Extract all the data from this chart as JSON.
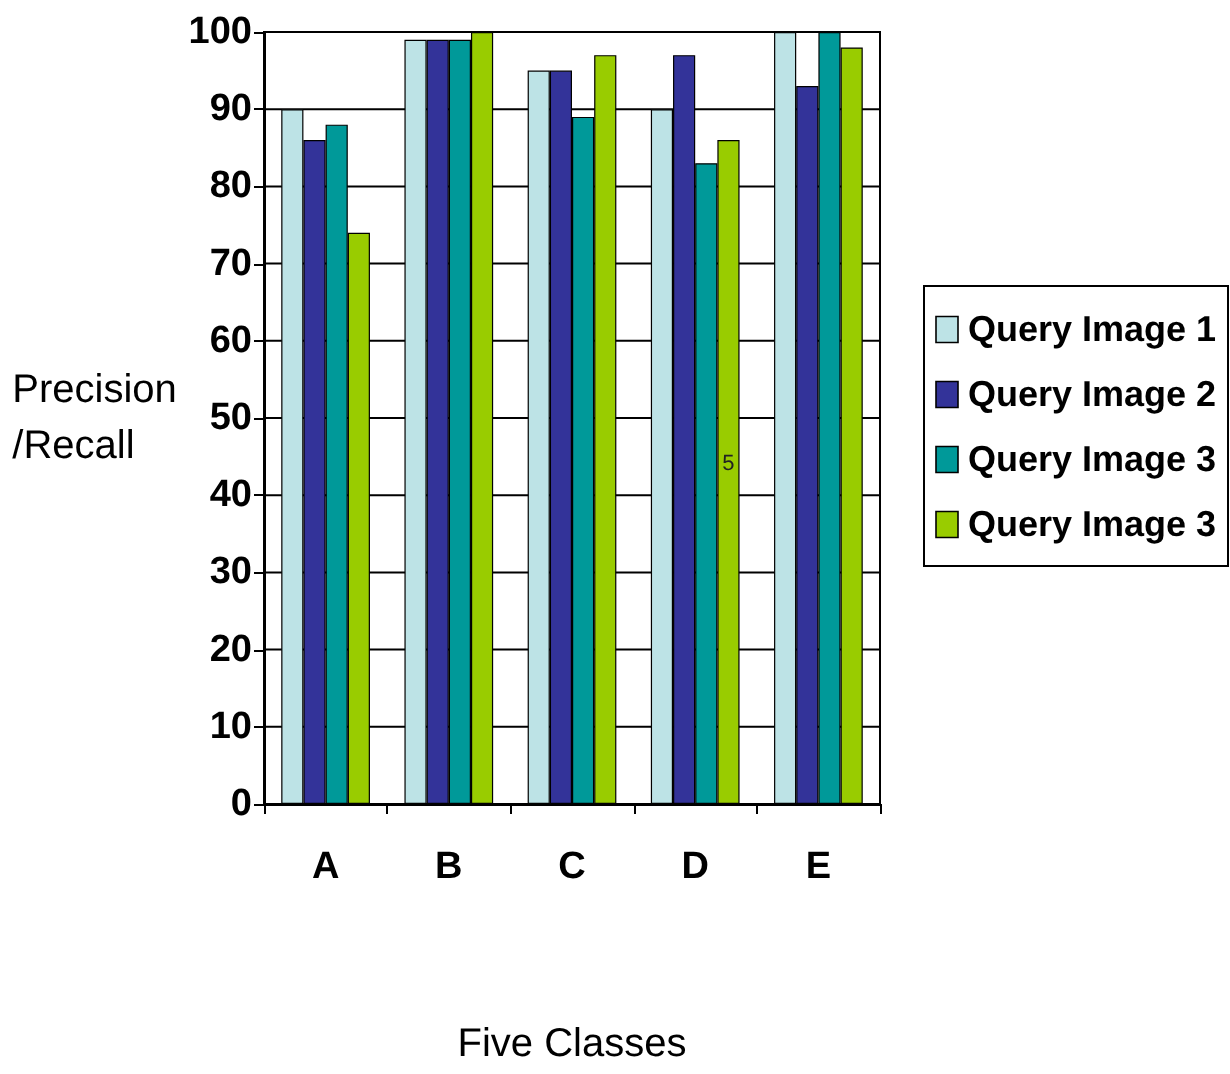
{
  "chart_data": {
    "type": "bar",
    "xlabel": "Five Classes",
    "ylabel": "Precision\n/Recall",
    "categories": [
      "A",
      "B",
      "C",
      "D",
      "E"
    ],
    "series": [
      {
        "name": "Query Image 1",
        "color": "#bde3e6",
        "values": [
          90,
          99,
          95,
          90,
          100
        ]
      },
      {
        "name": "Query Image 2",
        "color": "#333399",
        "values": [
          86,
          99,
          95,
          97,
          93
        ]
      },
      {
        "name": "Query Image 3",
        "color": "#009999",
        "values": [
          88,
          99,
          89,
          83,
          100
        ]
      },
      {
        "name": "Query Image 3",
        "color": "#99cc00",
        "values": [
          74,
          100,
          97,
          86,
          98
        ]
      }
    ],
    "ylim": [
      0,
      100
    ],
    "yticks": [
      0,
      10,
      20,
      30,
      40,
      50,
      60,
      70,
      80,
      90,
      100
    ],
    "grid": "y",
    "legend": "right",
    "annotations": [
      {
        "text": "5",
        "x": "D",
        "y": 44
      }
    ]
  }
}
